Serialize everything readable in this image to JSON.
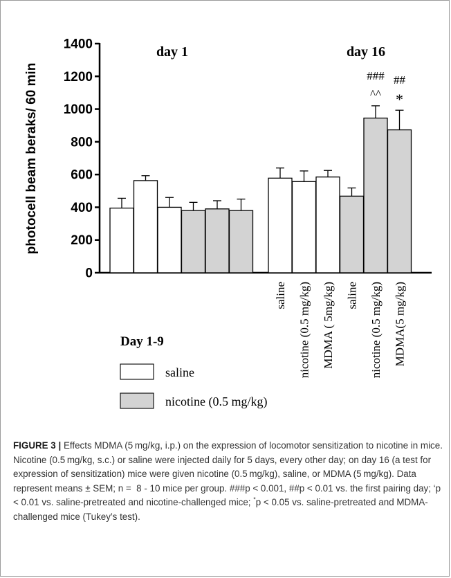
{
  "chart_data": {
    "type": "bar",
    "ylabel": "photocell beam beraks/ 60 min",
    "ylim": [
      0,
      1400
    ],
    "yticks": [
      0,
      200,
      400,
      600,
      800,
      1000,
      1200,
      1400
    ],
    "grid": false,
    "panels": [
      {
        "title": "day 1",
        "bars": [
          {
            "value": 395,
            "sem": 60,
            "group": "saline"
          },
          {
            "value": 563,
            "sem": 30,
            "group": "saline"
          },
          {
            "value": 400,
            "sem": 60,
            "group": "saline"
          },
          {
            "value": 380,
            "sem": 50,
            "group": "nicotine"
          },
          {
            "value": 390,
            "sem": 50,
            "group": "nicotine"
          },
          {
            "value": 380,
            "sem": 70,
            "group": "nicotine"
          }
        ]
      },
      {
        "title": "day 16",
        "bars": [
          {
            "value": 578,
            "sem": 62,
            "group": "saline",
            "label": "saline"
          },
          {
            "value": 557,
            "sem": 65,
            "group": "saline",
            "label": "nicotine (0.5 mg/kg)"
          },
          {
            "value": 585,
            "sem": 40,
            "group": "saline",
            "label": "MDMA ( 5mg/kg)"
          },
          {
            "value": 468,
            "sem": 50,
            "group": "nicotine",
            "label": "saline"
          },
          {
            "value": 945,
            "sem": 75,
            "group": "nicotine",
            "label": "nicotine (0.5 mg/kg)",
            "annotation": [
              "###",
              "^^"
            ]
          },
          {
            "value": 873,
            "sem": 120,
            "group": "nicotine",
            "label": "MDMA(5 mg/kg)",
            "annotation": [
              "##",
              "*"
            ]
          }
        ]
      }
    ],
    "legend": {
      "title": "Day 1-9",
      "placement": "bottom-left",
      "entries": [
        {
          "label": "saline",
          "color": "#ffffff"
        },
        {
          "label": "nicotine (0.5 mg/kg)",
          "color": "#d3d3d3"
        }
      ]
    }
  },
  "caption": {
    "label": "FIGURE 3 |",
    "text_a": " Effects MDMA (5 mg/kg, i.p.) on the expression of locomotor sensitization to nicotine in mice. Nicotine (0.5 mg/kg, s.c.) or saline were injected daily for 5 days, every other day; on day 16 (a test for expression of sensitization) mice were given nicotine (0.5 mg/kg), saline, or MDMA (5 mg/kg). Data represent means ± SEM; n =  8 - 10 mice per group. ###p < 0.001, ##p < 0.01 vs. the first pairing day; ‘p < 0.01 vs. saline-pretreated and nicotine-challenged mice; ",
    "sup": "*",
    "text_b": "p < 0.05 vs. saline-pretreated and MDMA-challenged mice (Tukey’s test)."
  }
}
